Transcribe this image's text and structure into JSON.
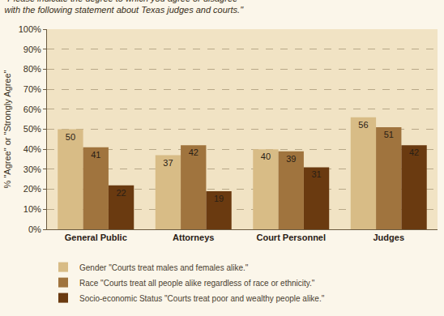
{
  "chart_data": {
    "type": "bar",
    "title": [
      "\"Please indicate the degree to which you agree or disagree",
      "with the following statement about Texas judges and courts.\""
    ],
    "y_label": "% \"Agree\" or \"Strongly Agree\"",
    "categories": [
      "General Public",
      "Attorneys",
      "Court Personnel",
      "Judges"
    ],
    "series": [
      {
        "name": "Gender \"Courts treat males and females alike.\"",
        "color": "#d8bc86",
        "values": [
          50,
          37,
          40,
          56
        ]
      },
      {
        "name": "Race \"Courts treat all people alike regardless of race or ethnicity.\"",
        "color": "#a0743e",
        "values": [
          41,
          42,
          39,
          51
        ]
      },
      {
        "name": "Socio-economic Status \"Courts treat poor and wealthy people alike.\"",
        "color": "#6a3a10",
        "values": [
          22,
          19,
          31,
          42
        ]
      }
    ],
    "ylim": [
      0,
      100
    ],
    "yticks": [
      {
        "value": 0,
        "label": "0%"
      },
      {
        "value": 10,
        "label": "10%"
      },
      {
        "value": 20,
        "label": "20%"
      },
      {
        "value": 30,
        "label": "30%"
      },
      {
        "value": 40,
        "label": "40%"
      },
      {
        "value": 50,
        "label": "50%"
      },
      {
        "value": 60,
        "label": "60%"
      },
      {
        "value": 70,
        "label": "70%"
      },
      {
        "value": 80,
        "label": "80%"
      },
      {
        "value": 90,
        "label": "90%"
      },
      {
        "value": 100,
        "label": "100%"
      }
    ],
    "grid": true,
    "legend": "bottom",
    "data_labels": true
  }
}
